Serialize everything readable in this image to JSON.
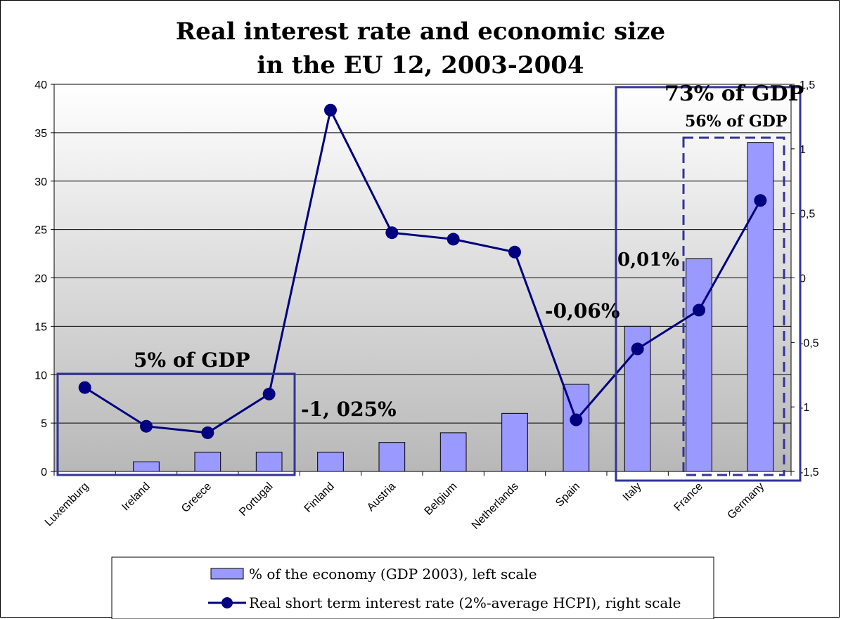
{
  "chart_data": {
    "type": "bar",
    "title_line1": "Real interest rate and economic size",
    "title_line2": "in the EU 12, 2003-2004",
    "categories": [
      "Luxemburg",
      "Ireland",
      "Greece",
      "Portugal",
      "Finland",
      "Austria",
      "Belgium",
      "Netherlands",
      "Spain",
      "Italy",
      "France",
      "Germany"
    ],
    "left_axis": {
      "min": 0,
      "max": 40,
      "ticks": [
        "0",
        "5",
        "10",
        "15",
        "20",
        "25",
        "30",
        "35",
        "40"
      ]
    },
    "right_axis": {
      "min": -1.5,
      "max": 1.5,
      "ticks": [
        "-1,5",
        "-1",
        "-0,5",
        "0",
        "0,5",
        "1",
        "1,5"
      ]
    },
    "series": [
      {
        "name": "% of the economy (GDP 2003), left scale",
        "type": "bar",
        "axis": "left",
        "color": "#9999ff",
        "values": [
          0,
          1,
          2,
          2,
          2,
          3,
          4,
          6,
          9,
          15,
          22,
          34
        ]
      },
      {
        "name": "Real short term interest rate (2%-average HCPI), right scale",
        "type": "line",
        "axis": "right",
        "color": "#000080",
        "values": [
          -0.85,
          -1.15,
          -1.2,
          -0.9,
          1.3,
          0.35,
          0.3,
          0.2,
          -1.1,
          -0.55,
          -0.25,
          0.6
        ]
      }
    ],
    "annotations": {
      "small_group": "5% of GDP",
      "small_group_rate": "-1, 025%",
      "spain_rate": "-0,06%",
      "large_group": "73% of GDP",
      "large_group_rate": "0,01%",
      "top_group": "56% of GDP"
    },
    "grid": true,
    "legend_position": "bottom"
  }
}
